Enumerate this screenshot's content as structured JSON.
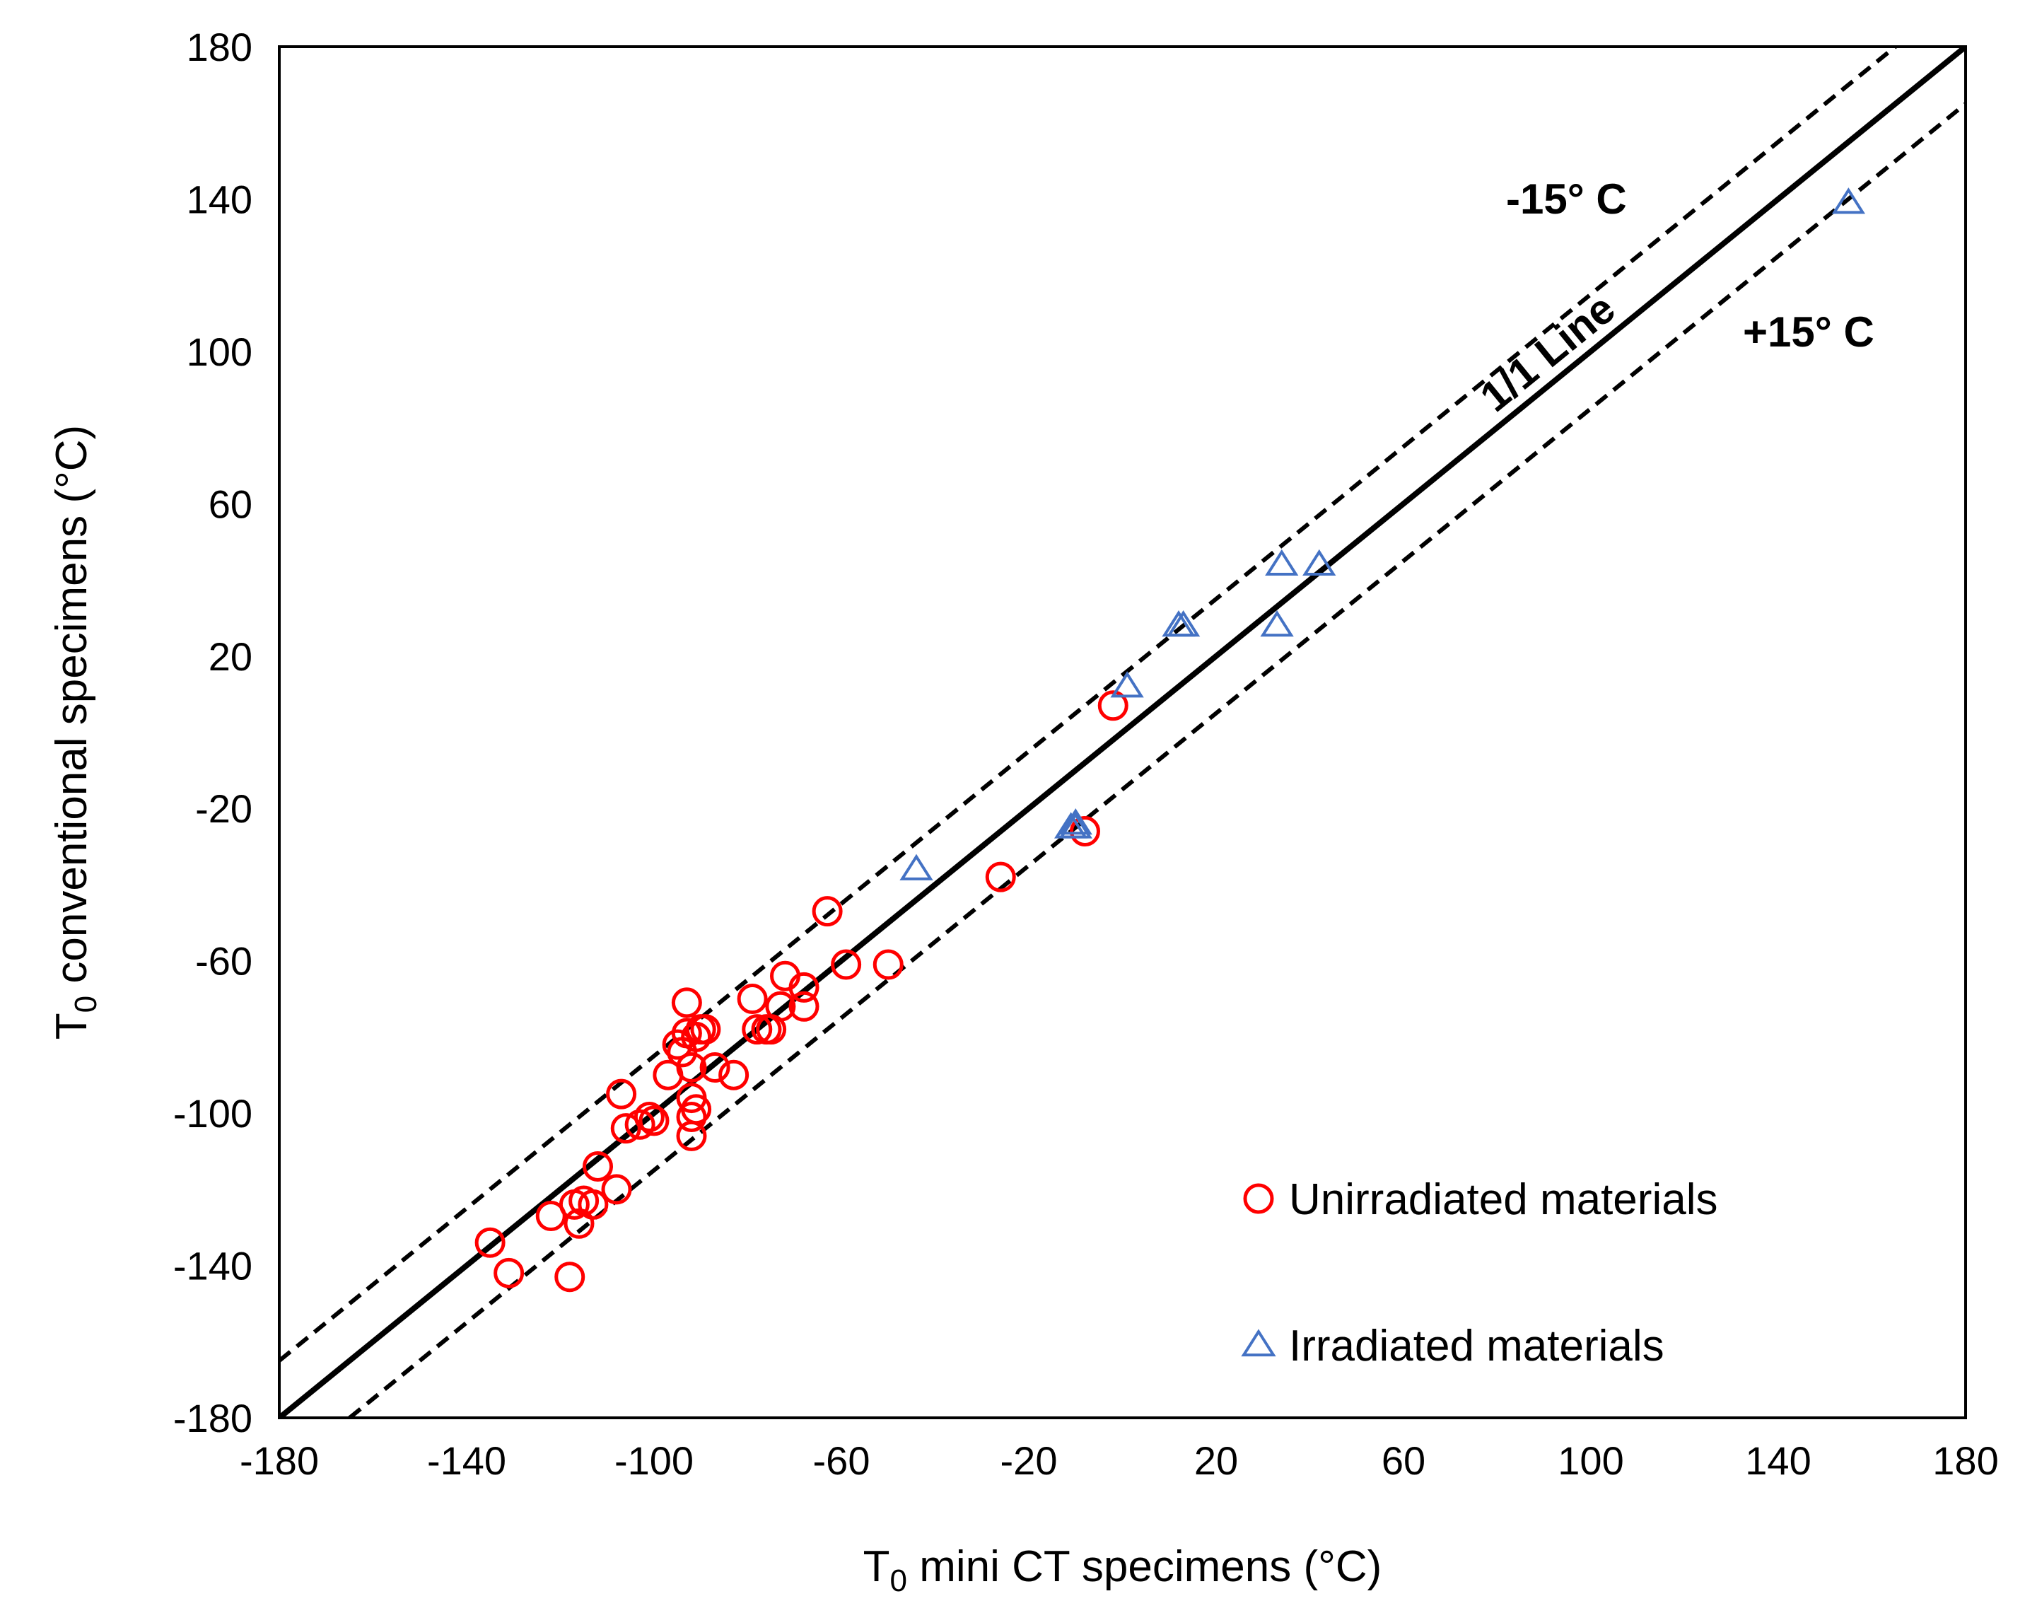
{
  "chart_data": {
    "type": "scatter",
    "title": "",
    "xlabel": {
      "main": "T",
      "sub": "0",
      "rest": " mini CT specimens (°C)"
    },
    "ylabel": {
      "main": "T",
      "sub": "0",
      "rest": " conventional specimens (°C)"
    },
    "xlim": [
      -180,
      180
    ],
    "ylim": [
      -180,
      180
    ],
    "xticks": [
      -180,
      -140,
      -100,
      -60,
      -20,
      20,
      60,
      100,
      140,
      180
    ],
    "yticks": [
      -180,
      -140,
      -100,
      -60,
      -20,
      20,
      60,
      100,
      140,
      180
    ],
    "grid": false,
    "reference_lines": [
      {
        "name": "1/1 Line",
        "offset": 0,
        "style": "solid",
        "label": "1/1 Line"
      },
      {
        "name": "-15° C",
        "offset": 15,
        "style": "dashed",
        "label": "-15° C"
      },
      {
        "name": "+15° C",
        "offset": -15,
        "style": "dashed",
        "label": "+15° C"
      }
    ],
    "series": [
      {
        "name": "Unirradiated materials",
        "marker": "circle",
        "color": "#ff0000",
        "points": [
          [
            -135,
            -134
          ],
          [
            -131,
            -142
          ],
          [
            -122,
            -127
          ],
          [
            -118,
            -143
          ],
          [
            -117,
            -124
          ],
          [
            -116,
            -129
          ],
          [
            -115,
            -123
          ],
          [
            -113,
            -124
          ],
          [
            -112,
            -114
          ],
          [
            -108,
            -120
          ],
          [
            -107,
            -95
          ],
          [
            -106,
            -104
          ],
          [
            -103,
            -103
          ],
          [
            -101,
            -101
          ],
          [
            -100,
            -102
          ],
          [
            -97,
            -90
          ],
          [
            -95,
            -82
          ],
          [
            -94,
            -84
          ],
          [
            -93,
            -71
          ],
          [
            -93,
            -79
          ],
          [
            -92,
            -88
          ],
          [
            -92,
            -96
          ],
          [
            -92,
            -101
          ],
          [
            -92,
            -106
          ],
          [
            -91,
            -80
          ],
          [
            -91,
            -99
          ],
          [
            -90,
            -78
          ],
          [
            -89,
            -78
          ],
          [
            -87,
            -88
          ],
          [
            -83,
            -90
          ],
          [
            -79,
            -70
          ],
          [
            -78,
            -78
          ],
          [
            -76,
            -78
          ],
          [
            -75,
            -78
          ],
          [
            -73,
            -72
          ],
          [
            -72,
            -64
          ],
          [
            -68,
            -67
          ],
          [
            -68,
            -72
          ],
          [
            -63,
            -47
          ],
          [
            -59,
            -61
          ],
          [
            -50,
            -61
          ],
          [
            -26,
            -38
          ],
          [
            -8,
            -26
          ],
          [
            -2,
            7
          ]
        ]
      },
      {
        "name": "Irradiated materials",
        "marker": "triangle",
        "color": "#4472c4",
        "points": [
          [
            -44,
            -36
          ],
          [
            -11,
            -25
          ],
          [
            -10,
            -24
          ],
          [
            -10,
            -25
          ],
          [
            1,
            12
          ],
          [
            12,
            28
          ],
          [
            13,
            28
          ],
          [
            33,
            28
          ],
          [
            34,
            44
          ],
          [
            42,
            44
          ],
          [
            155,
            139
          ]
        ]
      }
    ],
    "legend": {
      "position": "bottom-right",
      "entries": [
        "Unirradiated materials",
        "Irradiated materials"
      ]
    }
  }
}
